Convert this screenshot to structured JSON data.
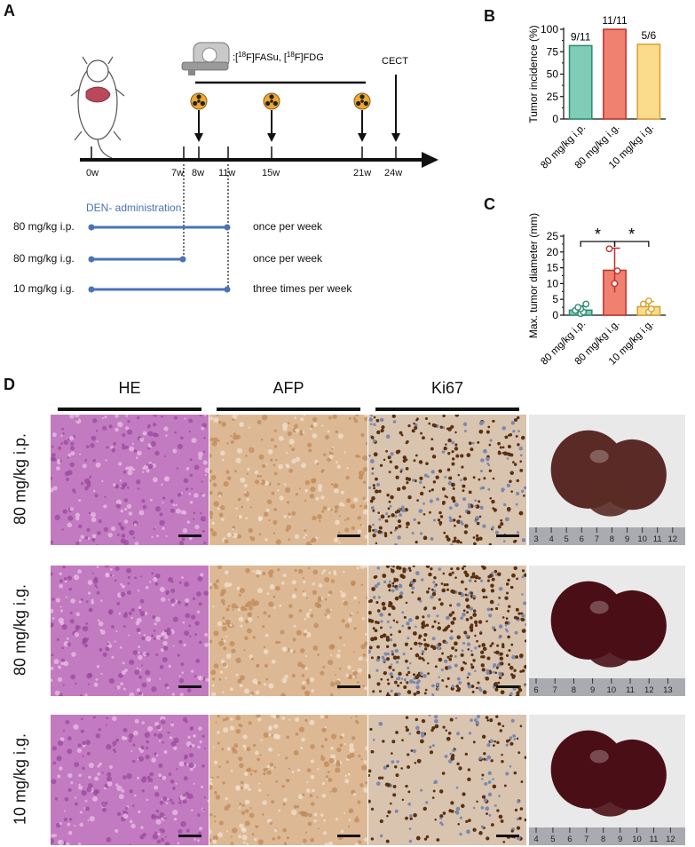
{
  "panels": {
    "a": "A",
    "b": "B",
    "c": "C",
    "d": "D"
  },
  "timeline": {
    "scan_label_prefix": ":[",
    "scan_tracer_1_sup": "18",
    "scan_tracer_1": "F]FASu, [",
    "scan_tracer_2_sup": "18",
    "scan_tracer_2": "F]FDG",
    "cect_label": "CECT",
    "ticks": [
      "0w",
      "7w",
      "8w",
      "11w",
      "15w",
      "21w",
      "24w"
    ],
    "den_label": "DEN- administration",
    "groups": [
      {
        "label": "80 mg/kg i.p.",
        "frequency": "once per week"
      },
      {
        "label": "80 mg/kg i.g.",
        "frequency": "once per week"
      },
      {
        "label": "10 mg/kg i.g.",
        "frequency": "three times per week"
      }
    ]
  },
  "chart_data": [
    {
      "type": "bar",
      "ylabel": "Tumor incidence (%)",
      "categories": [
        "80 mg/kg i.p.",
        "80 mg/kg i.g.",
        "10 mg/kg i.g."
      ],
      "values": [
        81.8,
        100,
        83.3
      ],
      "data_labels": [
        "9/11",
        "11/11",
        "5/6"
      ],
      "ylim": [
        0,
        100
      ],
      "yticks": [
        "0",
        "25",
        "50",
        "75",
        "100"
      ],
      "colors": [
        "#7fcdb6",
        "#f08070",
        "#fadc8c"
      ],
      "edge_colors": [
        "#2a8a70",
        "#c0302a",
        "#d9a030"
      ]
    },
    {
      "type": "bar",
      "ylabel": "Max. tumor diameter (mm)",
      "categories": [
        "80 mg/kg i.p.",
        "80 mg/kg i.g.",
        "10 mg/kg i.g."
      ],
      "values": [
        1.6,
        14.2,
        2.7
      ],
      "errors": [
        1.3,
        7.0,
        1.6
      ],
      "points": [
        [
          0.5,
          1.0,
          1.5,
          2.0,
          2.5,
          3.5
        ],
        [
          10.0,
          14.0,
          21.0
        ],
        [
          1.0,
          2.0,
          3.5,
          4.5
        ]
      ],
      "ylim": [
        0,
        25
      ],
      "yticks": [
        "0",
        "5",
        "10",
        "15",
        "20",
        "25"
      ],
      "significance": [
        "*",
        "*"
      ],
      "colors": [
        "#7fcdb6",
        "#f08070",
        "#fadc8c"
      ],
      "edge_colors": [
        "#2a8a70",
        "#c0302a",
        "#d9a030"
      ]
    }
  ],
  "histology": {
    "columns": [
      "HE",
      "AFP",
      "Ki67"
    ],
    "rows": [
      "80 mg/kg i.p.",
      "80 mg/kg i.g.",
      "10 mg/kg i.g."
    ],
    "ruler_labels": [
      [
        "3",
        "4",
        "5",
        "6",
        "7",
        "8",
        "9",
        "10",
        "11",
        "12"
      ],
      [
        "6",
        "7",
        "8",
        "9",
        "10",
        "11",
        "12",
        "13"
      ],
      [
        "4",
        "5",
        "6",
        "7",
        "8",
        "9",
        "10",
        "11",
        "12"
      ]
    ]
  }
}
